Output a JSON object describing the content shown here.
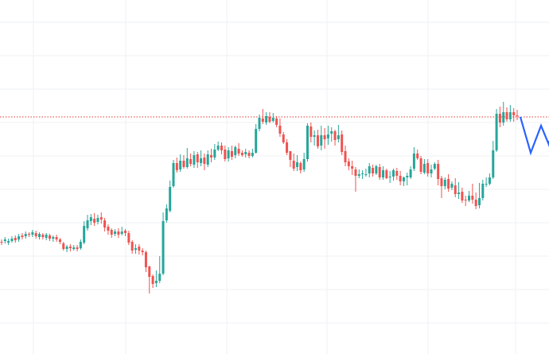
{
  "chart_data": {
    "type": "candlestick",
    "title": "",
    "xlabel": "",
    "ylabel": "",
    "ylim": [
      0,
      445
    ],
    "grid": true,
    "colors": {
      "up": "#26a69a",
      "down": "#ef5350",
      "projection": "#2962ff",
      "reference_line": "#e53935",
      "grid": "#eef0f3",
      "background": "#ffffff"
    },
    "candles": [
      [
        141,
        140,
        137,
        144
      ],
      [
        142,
        144,
        139,
        147
      ],
      [
        140,
        142,
        137,
        145
      ],
      [
        142,
        145,
        140,
        148
      ],
      [
        146,
        143,
        140,
        149
      ],
      [
        144,
        148,
        141,
        151
      ],
      [
        149,
        147,
        144,
        152
      ],
      [
        148,
        151,
        145,
        154
      ],
      [
        151,
        150,
        147,
        153
      ],
      [
        150,
        153,
        147,
        156
      ],
      [
        152,
        148,
        145,
        155
      ],
      [
        147,
        151,
        144,
        153
      ],
      [
        150,
        147,
        144,
        152
      ],
      [
        146,
        150,
        143,
        152
      ],
      [
        149,
        145,
        142,
        151
      ],
      [
        145,
        147,
        141,
        149
      ],
      [
        147,
        144,
        141,
        150
      ],
      [
        144,
        141,
        138,
        146
      ],
      [
        139,
        132,
        130,
        141
      ],
      [
        132,
        135,
        128,
        137
      ],
      [
        135,
        133,
        129,
        138
      ],
      [
        132,
        134,
        130,
        137
      ],
      [
        134,
        132,
        129,
        137
      ],
      [
        133,
        141,
        131,
        144
      ],
      [
        140,
        161,
        138,
        167
      ],
      [
        158,
        168,
        155,
        175
      ],
      [
        167,
        172,
        162,
        176
      ],
      [
        170,
        165,
        161,
        177
      ],
      [
        166,
        171,
        163,
        175
      ],
      [
        172,
        169,
        164,
        178
      ],
      [
        168,
        159,
        154,
        171
      ],
      [
        160,
        155,
        150,
        163
      ],
      [
        156,
        150,
        146,
        158
      ],
      [
        151,
        154,
        148,
        157
      ],
      [
        154,
        150,
        146,
        158
      ],
      [
        151,
        154,
        149,
        160
      ],
      [
        155,
        152,
        148,
        157
      ],
      [
        152,
        140,
        137,
        155
      ],
      [
        141,
        130,
        126,
        143
      ],
      [
        131,
        133,
        126,
        138
      ],
      [
        135,
        130,
        125,
        138
      ],
      [
        130,
        128,
        124,
        133
      ],
      [
        128,
        109,
        103,
        130
      ],
      [
        110,
        97,
        76,
        111
      ],
      [
        98,
        88,
        83,
        100
      ],
      [
        89,
        92,
        84,
        105
      ],
      [
        92,
        101,
        89,
        123
      ],
      [
        101,
        167,
        99,
        178
      ],
      [
        168,
        183,
        165,
        188
      ],
      [
        180,
        210,
        178,
        218
      ],
      [
        211,
        240,
        209,
        244
      ],
      [
        240,
        231,
        228,
        247
      ],
      [
        232,
        243,
        229,
        251
      ],
      [
        243,
        235,
        233,
        250
      ],
      [
        235,
        246,
        233,
        259
      ],
      [
        245,
        239,
        236,
        252
      ],
      [
        238,
        250,
        234,
        255
      ],
      [
        251,
        241,
        234,
        254
      ],
      [
        240,
        246,
        236,
        256
      ],
      [
        247,
        239,
        231,
        252
      ],
      [
        238,
        251,
        235,
        256
      ],
      [
        250,
        247,
        241,
        258
      ],
      [
        247,
        257,
        244,
        264
      ],
      [
        257,
        262,
        255,
        267
      ],
      [
        262,
        256,
        251,
        266
      ],
      [
        257,
        245,
        242,
        262
      ],
      [
        246,
        256,
        242,
        260
      ],
      [
        255,
        248,
        244,
        262
      ],
      [
        250,
        260,
        246,
        262
      ],
      [
        258,
        252,
        249,
        265
      ],
      [
        253,
        250,
        248,
        256
      ],
      [
        251,
        254,
        247,
        258
      ],
      [
        253,
        249,
        246,
        256
      ],
      [
        249,
        253,
        247,
        258
      ],
      [
        253,
        283,
        252,
        289
      ],
      [
        283,
        297,
        280,
        301
      ],
      [
        296,
        292,
        289,
        308
      ],
      [
        291,
        299,
        288,
        304
      ],
      [
        298,
        292,
        290,
        304
      ],
      [
        293,
        297,
        291,
        303
      ],
      [
        296,
        288,
        285,
        299
      ],
      [
        287,
        277,
        273,
        296
      ],
      [
        276,
        266,
        264,
        279
      ],
      [
        266,
        253,
        250,
        270
      ],
      [
        255,
        244,
        235,
        255
      ],
      [
        243,
        233,
        230,
        252
      ],
      [
        235,
        241,
        230,
        250
      ],
      [
        240,
        231,
        227,
        242
      ],
      [
        232,
        245,
        229,
        253
      ],
      [
        245,
        287,
        242,
        290
      ],
      [
        286,
        273,
        266,
        291
      ],
      [
        273,
        275,
        262,
        281
      ],
      [
        275,
        261,
        258,
        282
      ],
      [
        262,
        275,
        256,
        287
      ],
      [
        275,
        270,
        258,
        284
      ],
      [
        271,
        276,
        263,
        287
      ],
      [
        277,
        280,
        267,
        285
      ],
      [
        280,
        269,
        262,
        282
      ],
      [
        270,
        275,
        266,
        288
      ],
      [
        276,
        254,
        250,
        281
      ],
      [
        255,
        241,
        236,
        262
      ],
      [
        242,
        236,
        231,
        246
      ],
      [
        236,
        233,
        225,
        243
      ],
      [
        232,
        224,
        204,
        235
      ],
      [
        224,
        226,
        221,
        232
      ],
      [
        226,
        227,
        220,
        231
      ],
      [
        226,
        226,
        223,
        233
      ],
      [
        227,
        236,
        222,
        240
      ],
      [
        234,
        227,
        223,
        238
      ],
      [
        227,
        236,
        225,
        238
      ],
      [
        235,
        222,
        219,
        239
      ],
      [
        222,
        231,
        219,
        236
      ],
      [
        231,
        221,
        220,
        233
      ],
      [
        222,
        223,
        215,
        230
      ],
      [
        223,
        231,
        218,
        233
      ],
      [
        230,
        224,
        219,
        234
      ],
      [
        224,
        217,
        212,
        230
      ],
      [
        217,
        222,
        211,
        223
      ],
      [
        222,
        224,
        212,
        228
      ],
      [
        222,
        232,
        220,
        236
      ],
      [
        233,
        252,
        230,
        260
      ],
      [
        252,
        246,
        244,
        257
      ],
      [
        246,
        229,
        226,
        249
      ],
      [
        228,
        239,
        226,
        245
      ],
      [
        240,
        227,
        223,
        245
      ],
      [
        227,
        232,
        222,
        238
      ],
      [
        233,
        239,
        231,
        241
      ],
      [
        239,
        220,
        212,
        244
      ],
      [
        221,
        211,
        196,
        224
      ],
      [
        211,
        219,
        207,
        222
      ],
      [
        220,
        208,
        204,
        226
      ],
      [
        209,
        214,
        206,
        217
      ],
      [
        212,
        201,
        197,
        221
      ],
      [
        201,
        203,
        195,
        216
      ],
      [
        204,
        193,
        190,
        209
      ],
      [
        194,
        193,
        186,
        199
      ],
      [
        193,
        199,
        191,
        205
      ],
      [
        199,
        194,
        189,
        214
      ],
      [
        194,
        186,
        182,
        203
      ],
      [
        187,
        196,
        183,
        215
      ],
      [
        196,
        214,
        193,
        219
      ],
      [
        214,
        214,
        210,
        222
      ],
      [
        214,
        222,
        212,
        227
      ],
      [
        222,
        256,
        220,
        268
      ],
      [
        256,
        302,
        254,
        308
      ],
      [
        302,
        291,
        285,
        311
      ],
      [
        291,
        304,
        287,
        317
      ],
      [
        304,
        295,
        292,
        310
      ],
      [
        295,
        304,
        292,
        313
      ],
      [
        304,
        300,
        292,
        309
      ],
      [
        300,
        299,
        294,
        307
      ]
    ],
    "projection": [
      298,
      253,
      287,
      258,
      268
    ],
    "reference_level": 298
  }
}
